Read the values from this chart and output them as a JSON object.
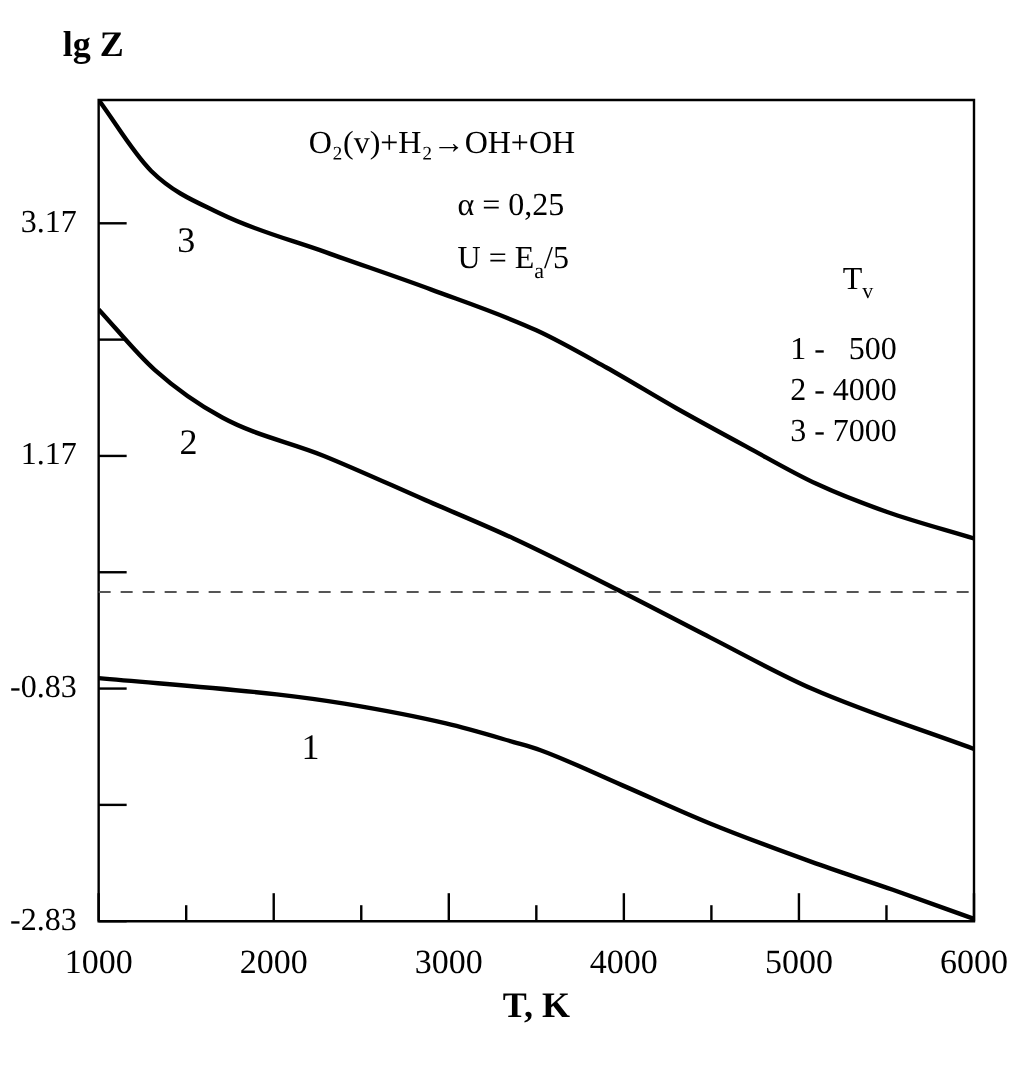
{
  "chart_data": {
    "type": "line",
    "xlabel": "T, K",
    "ylabel": "lg Z",
    "xlim": [
      1000,
      6000
    ],
    "ylim": [
      -2.83,
      4.23
    ],
    "xticks": [
      1000,
      {
        "value": 1500,
        "label": null
      },
      2000,
      {
        "value": 2500,
        "label": null
      },
      3000,
      {
        "value": 3500,
        "label": null
      },
      4000,
      {
        "value": 4500,
        "label": null
      },
      5000,
      {
        "value": 5500,
        "label": null
      },
      6000
    ],
    "yticks": [
      -2.83,
      {
        "value": -1.83,
        "label": null
      },
      -0.83,
      {
        "value": 0.17,
        "label": null
      },
      1.17,
      {
        "value": 2.17,
        "label": null
      },
      3.17
    ],
    "series": [
      {
        "name": "1",
        "color": "#000000",
        "x": [
          1000,
          2017,
          2404,
          2984,
          3370,
          3524,
          3989,
          4492,
          5072,
          5536,
          6000
        ],
        "values": [
          -0.74,
          -0.88,
          -0.96,
          -1.13,
          -1.29,
          -1.36,
          -1.66,
          -1.99,
          -2.32,
          -2.56,
          -2.81
        ]
      },
      {
        "name": "2",
        "color": "#000000",
        "x": [
          1000,
          1320,
          1706,
          2287,
          2867,
          3370,
          3989,
          4492,
          5072,
          6000
        ],
        "values": [
          2.43,
          1.91,
          1.5,
          1.17,
          0.79,
          0.46,
          0,
          -0.39,
          -0.83,
          -1.35
        ]
      },
      {
        "name": "3",
        "color": "#000000",
        "x": [
          1000,
          1300,
          1700,
          2300,
          2900,
          3500,
          3900,
          4300,
          4700,
          5100,
          5500,
          6000
        ],
        "values": [
          4.23,
          3.62,
          3.25,
          2.92,
          2.6,
          2.25,
          1.93,
          1.58,
          1.25,
          0.93,
          0.69,
          0.46
        ]
      }
    ],
    "ref_lines": [
      {
        "axis": "y",
        "value": 0,
        "color": "#555555",
        "line_style": "dashed"
      }
    ],
    "annotations": [
      "O₂(v)+H₂→OH+OH",
      "α = 0,25",
      "U = E$_{a}$/5",
      "T$_{v}$",
      "1 -   500",
      "2 - 4000",
      "3 - 7000"
    ],
    "legend": false,
    "grid": false,
    "marker": "none",
    "line_style": "solid"
  }
}
